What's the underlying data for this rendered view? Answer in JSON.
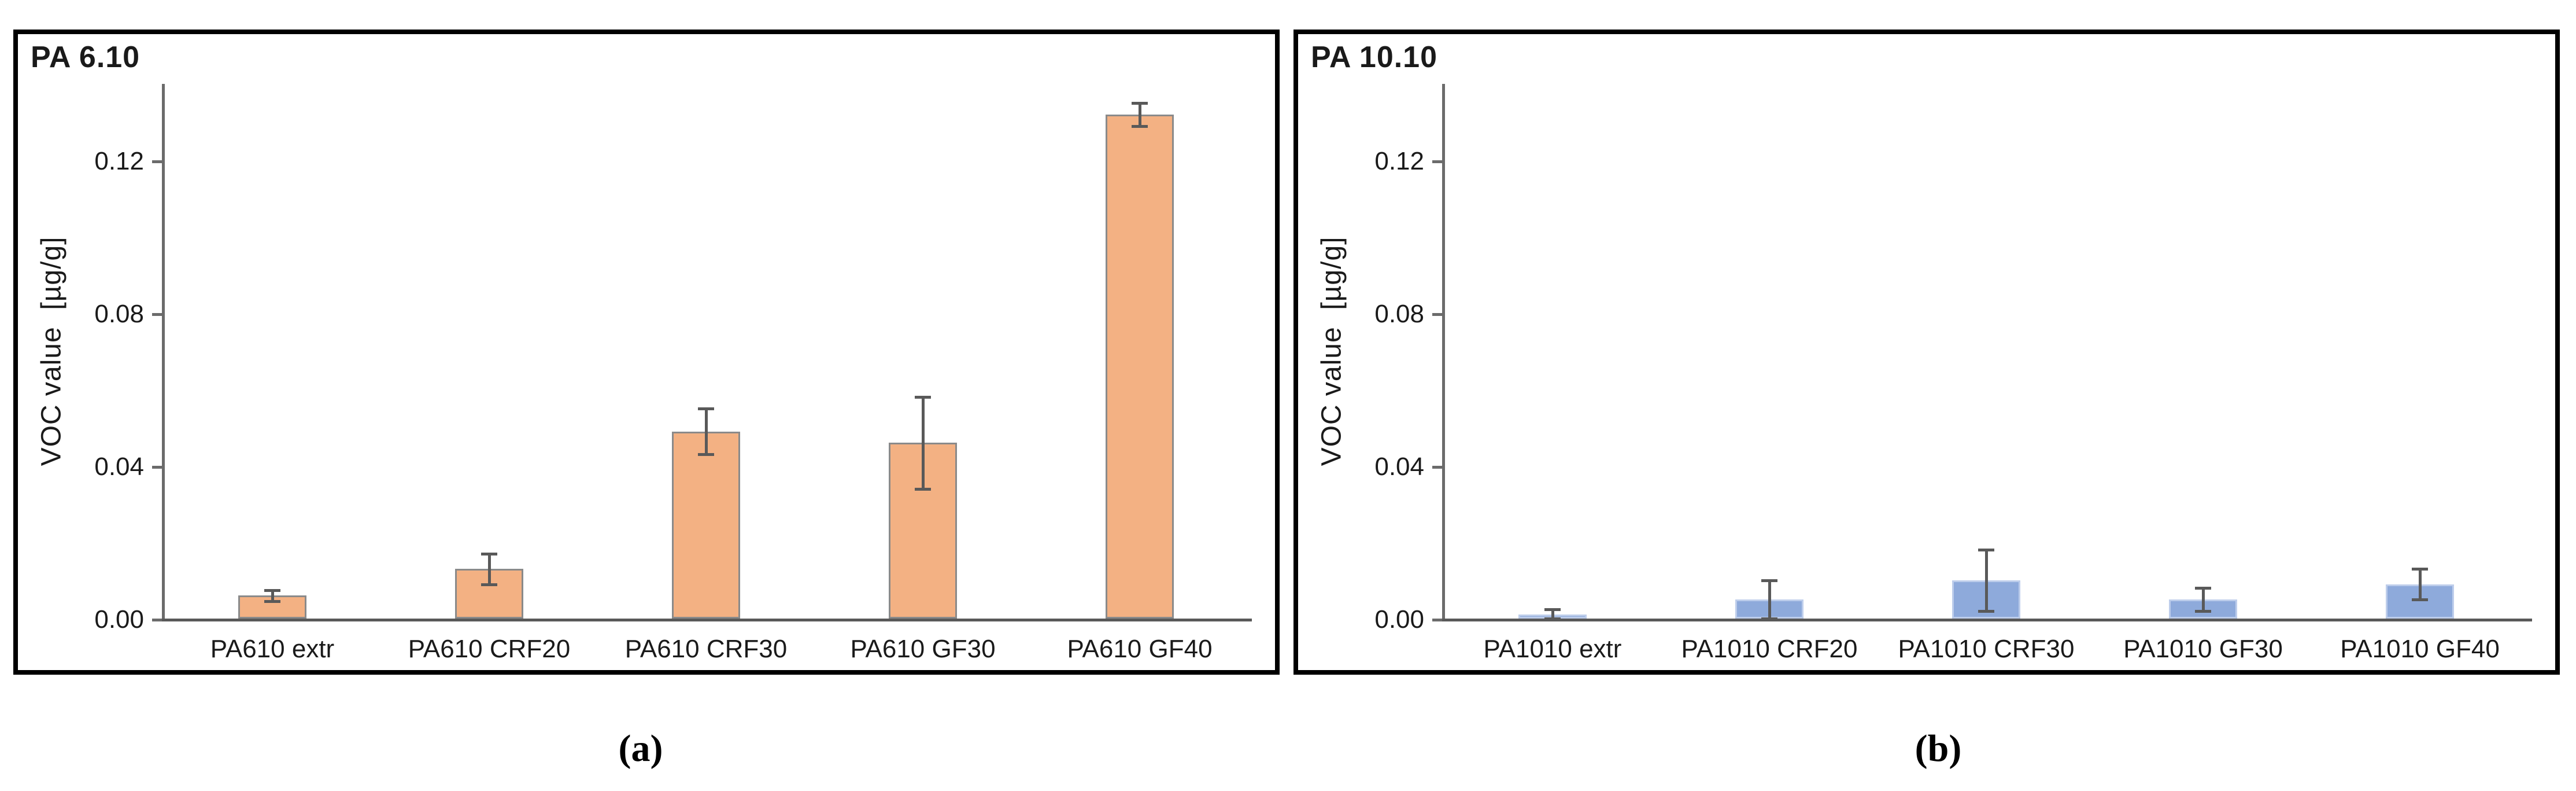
{
  "figure": {
    "background": "#ffffff",
    "panel_border_color": "#000000",
    "axis_color": "#6b6b6b",
    "baseline_color": "#595959",
    "error_bar_color": "#595959",
    "captions": {
      "a": "(a)",
      "b": "(b)"
    }
  },
  "chart_data": [
    {
      "type": "bar",
      "panel": "a",
      "title": "PA 6.10",
      "caption": "(a)",
      "ylabel": "VOC value  [µg/g]",
      "xlabel": "",
      "ylim": [
        0,
        0.14
      ],
      "yticks": [
        0,
        0.04,
        0.08,
        0.12
      ],
      "ytick_labels": [
        "0.00",
        "0.04",
        "0.08",
        "0.12"
      ],
      "grid": false,
      "legend": "none",
      "bar_color": "#F3B183",
      "bar_border_color": "#8A8A8A",
      "error_color": "#595959",
      "categories": [
        "PA610 extr",
        "PA610 CRF20",
        "PA610 CRF30",
        "PA610 GF30",
        "PA610 GF40"
      ],
      "values": [
        0.006,
        0.013,
        0.049,
        0.046,
        0.132
      ],
      "errors": [
        0.0015,
        0.004,
        0.006,
        0.012,
        0.003
      ]
    },
    {
      "type": "bar",
      "panel": "b",
      "title": "PA 10.10",
      "caption": "(b)",
      "ylabel": "VOC value  [µg/g]",
      "xlabel": "",
      "ylim": [
        0,
        0.14
      ],
      "yticks": [
        0,
        0.04,
        0.08,
        0.12
      ],
      "ytick_labels": [
        "0.00",
        "0.04",
        "0.08",
        "0.12"
      ],
      "grid": false,
      "legend": "none",
      "bar_color": "#8EAADB",
      "bar_border_color": "#BDCDEB",
      "error_color": "#595959",
      "categories": [
        "PA1010 extr",
        "PA1010 CRF20",
        "PA1010 CRF30",
        "PA1010 GF30",
        "PA1010 GF40"
      ],
      "values": [
        0.001,
        0.005,
        0.01,
        0.005,
        0.009
      ],
      "errors": [
        0.0015,
        0.005,
        0.008,
        0.003,
        0.004
      ]
    }
  ]
}
